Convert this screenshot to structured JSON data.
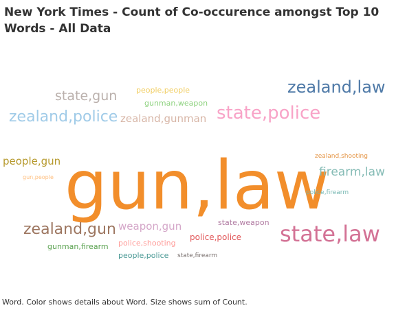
{
  "chart_data": {
    "type": "word_cloud",
    "title": "New York Times - Count of Co-occurence amongst Top 10 Words - All Data",
    "caption": "Word.  Color shows details about Word.  Size shows sum of Count.",
    "words": [
      {
        "text": "gun,law",
        "color": "#f28e2b"
      },
      {
        "text": "zealand,law",
        "color": "#4e79a7"
      },
      {
        "text": "state,police",
        "color": "#f8a3c7"
      },
      {
        "text": "state,law",
        "color": "#d37295"
      },
      {
        "text": "zealand,police",
        "color": "#a0cbe8"
      },
      {
        "text": "zealand,gun",
        "color": "#9d7660"
      },
      {
        "text": "state,gun",
        "color": "#bab0ac"
      },
      {
        "text": "firearm,law",
        "color": "#86bcb6"
      },
      {
        "text": "zealand,gunman",
        "color": "#d7b5a6"
      },
      {
        "text": "people,gun",
        "color": "#b6992d"
      },
      {
        "text": "weapon,gun",
        "color": "#d4a6c8"
      },
      {
        "text": "police,police",
        "color": "#e15759"
      },
      {
        "text": "state,weapon",
        "color": "#b07aa1"
      },
      {
        "text": "people,people",
        "color": "#f1ce63"
      },
      {
        "text": "gunman,weapon",
        "color": "#8cd17d"
      },
      {
        "text": "gunman,firearm",
        "color": "#59a14f"
      },
      {
        "text": "police,shooting",
        "color": "#ff9d9a"
      },
      {
        "text": "people,police",
        "color": "#499894"
      },
      {
        "text": "zealand,shooting",
        "color": "#e49444"
      },
      {
        "text": "police,firearm",
        "color": "#76b7b2"
      },
      {
        "text": "state,firearm",
        "color": "#79706e"
      },
      {
        "text": "gun,people",
        "color": "#ffbe7d"
      }
    ]
  }
}
